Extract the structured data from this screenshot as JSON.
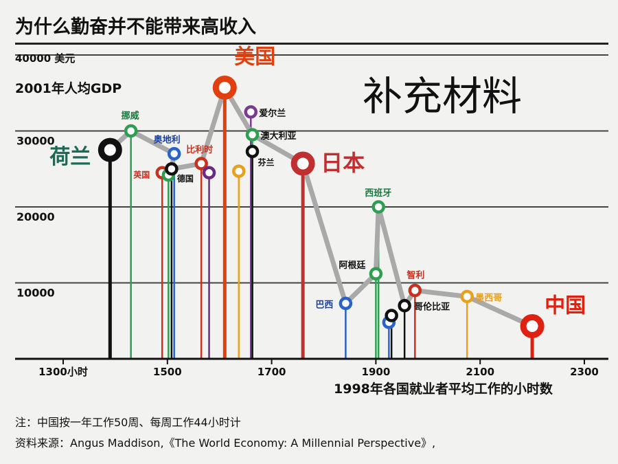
{
  "title": "为什么勤奋并不能带来高收入",
  "supplement": "补充材料",
  "note_line1": "注：中国按一年工作50周、每周工作44小时计",
  "note_line2": "资料来源：Angus Maddison,《The World Economy: A Millennial Perspective》,",
  "chart_data": {
    "type": "scatter",
    "title": "2001年人均GDP",
    "ylabel": "40000 美元",
    "xlabel": "1998年各国就业者平均工作的小时数",
    "xlim": [
      1260,
      2305
    ],
    "ylim": [
      0,
      40000
    ],
    "xticks": [
      1300,
      1500,
      1700,
      1900,
      2100,
      2300
    ],
    "xtick_labels": [
      "1300小时",
      "1500",
      "1700",
      "1900",
      "2100",
      "2300"
    ],
    "yticks": [
      10000,
      20000,
      30000
    ],
    "ytick_labels": [
      "10000",
      "20000",
      "30000"
    ],
    "grid": true,
    "points": [
      {
        "name": "荷兰",
        "x": 1390,
        "y": 27500,
        "color": "#111111",
        "size": "big"
      },
      {
        "name": "挪威",
        "x": 1430,
        "y": 30000,
        "color": "#2e9e50",
        "size": "small"
      },
      {
        "name": "英国",
        "x": 1490,
        "y": 24500,
        "color": "#c83020",
        "size": "small"
      },
      {
        "name": "奥地利",
        "x": 1513,
        "y": 27000,
        "color": "#2a62c8",
        "size": "small"
      },
      {
        "name": "",
        "x": 1502,
        "y": 24200,
        "color": "#2e9e50",
        "size": "small"
      },
      {
        "name": "德国",
        "x": 1508,
        "y": 25000,
        "color": "#111111",
        "size": "small"
      },
      {
        "name": "比利时",
        "x": 1565,
        "y": 25700,
        "color": "#c83020",
        "size": "small"
      },
      {
        "name": "",
        "x": 1580,
        "y": 24500,
        "color": "#6a2a80",
        "size": "small"
      },
      {
        "name": "美国",
        "x": 1610,
        "y": 35700,
        "color": "#e04010",
        "size": "big"
      },
      {
        "name": "",
        "x": 1637,
        "y": 24700,
        "color": "#e8a020",
        "size": "small"
      },
      {
        "name": "爱尔兰",
        "x": 1660,
        "y": 32500,
        "color": "#7a3a90",
        "size": "small"
      },
      {
        "name": "澳大利亚",
        "x": 1663,
        "y": 29500,
        "color": "#2e9e50",
        "size": "small"
      },
      {
        "name": "芬兰",
        "x": 1663,
        "y": 27300,
        "color": "#111111",
        "size": "small"
      },
      {
        "name": "日本",
        "x": 1760,
        "y": 25700,
        "color": "#c03030",
        "size": "big"
      },
      {
        "name": "巴西",
        "x": 1842,
        "y": 7300,
        "color": "#2a62c8",
        "size": "small"
      },
      {
        "name": "阿根廷",
        "x": 1900,
        "y": 11200,
        "color": "#2e9e50",
        "size": "small"
      },
      {
        "name": "西班牙",
        "x": 1905,
        "y": 20000,
        "color": "#2e9e50",
        "size": "small"
      },
      {
        "name": "",
        "x": 1925,
        "y": 4800,
        "color": "#2a62c8",
        "size": "small"
      },
      {
        "name": "",
        "x": 1930,
        "y": 5700,
        "color": "#111111",
        "size": "small"
      },
      {
        "name": "哥伦比亚",
        "x": 1955,
        "y": 7000,
        "color": "#111111",
        "size": "small"
      },
      {
        "name": "智利",
        "x": 1975,
        "y": 9000,
        "color": "#c83020",
        "size": "small"
      },
      {
        "name": "墨西哥",
        "x": 2075,
        "y": 8200,
        "color": "#e8a020",
        "size": "small"
      },
      {
        "name": "中国",
        "x": 2200,
        "y": 4300,
        "color": "#e02010",
        "size": "big"
      }
    ],
    "path_order": [
      "荷兰",
      "挪威",
      "奥地利",
      "德国",
      "比利时",
      "美国",
      "澳大利亚",
      "日本",
      "巴西",
      "阿根廷",
      "西班牙",
      "哥伦比亚",
      "智利",
      "墨西哥",
      "中国"
    ]
  }
}
